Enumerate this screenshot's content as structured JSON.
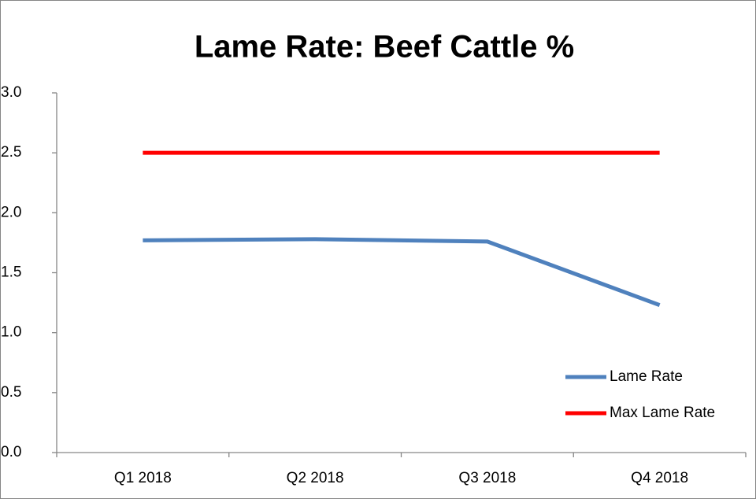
{
  "chart_data": {
    "type": "line",
    "title": "Lame Rate: Beef Cattle %",
    "categories": [
      "Q1 2018",
      "Q2 2018",
      "Q3 2018",
      "Q4 2018"
    ],
    "series": [
      {
        "name": "Lame Rate",
        "color": "#4f81bd",
        "values": [
          1.77,
          1.78,
          1.76,
          1.23
        ]
      },
      {
        "name": "Max Lame Rate",
        "color": "#ff0000",
        "values": [
          2.5,
          2.5,
          2.5,
          2.5
        ]
      }
    ],
    "ylim": [
      0,
      3
    ],
    "yticks": [
      {
        "value": 0,
        "label": "0.0"
      },
      0.5,
      {
        "value": 1,
        "label": "1.0"
      },
      1.5,
      {
        "value": 2,
        "label": "2.0"
      },
      2.5,
      {
        "value": 3,
        "label": "3.0"
      }
    ],
    "grid": false,
    "legend": "right"
  }
}
